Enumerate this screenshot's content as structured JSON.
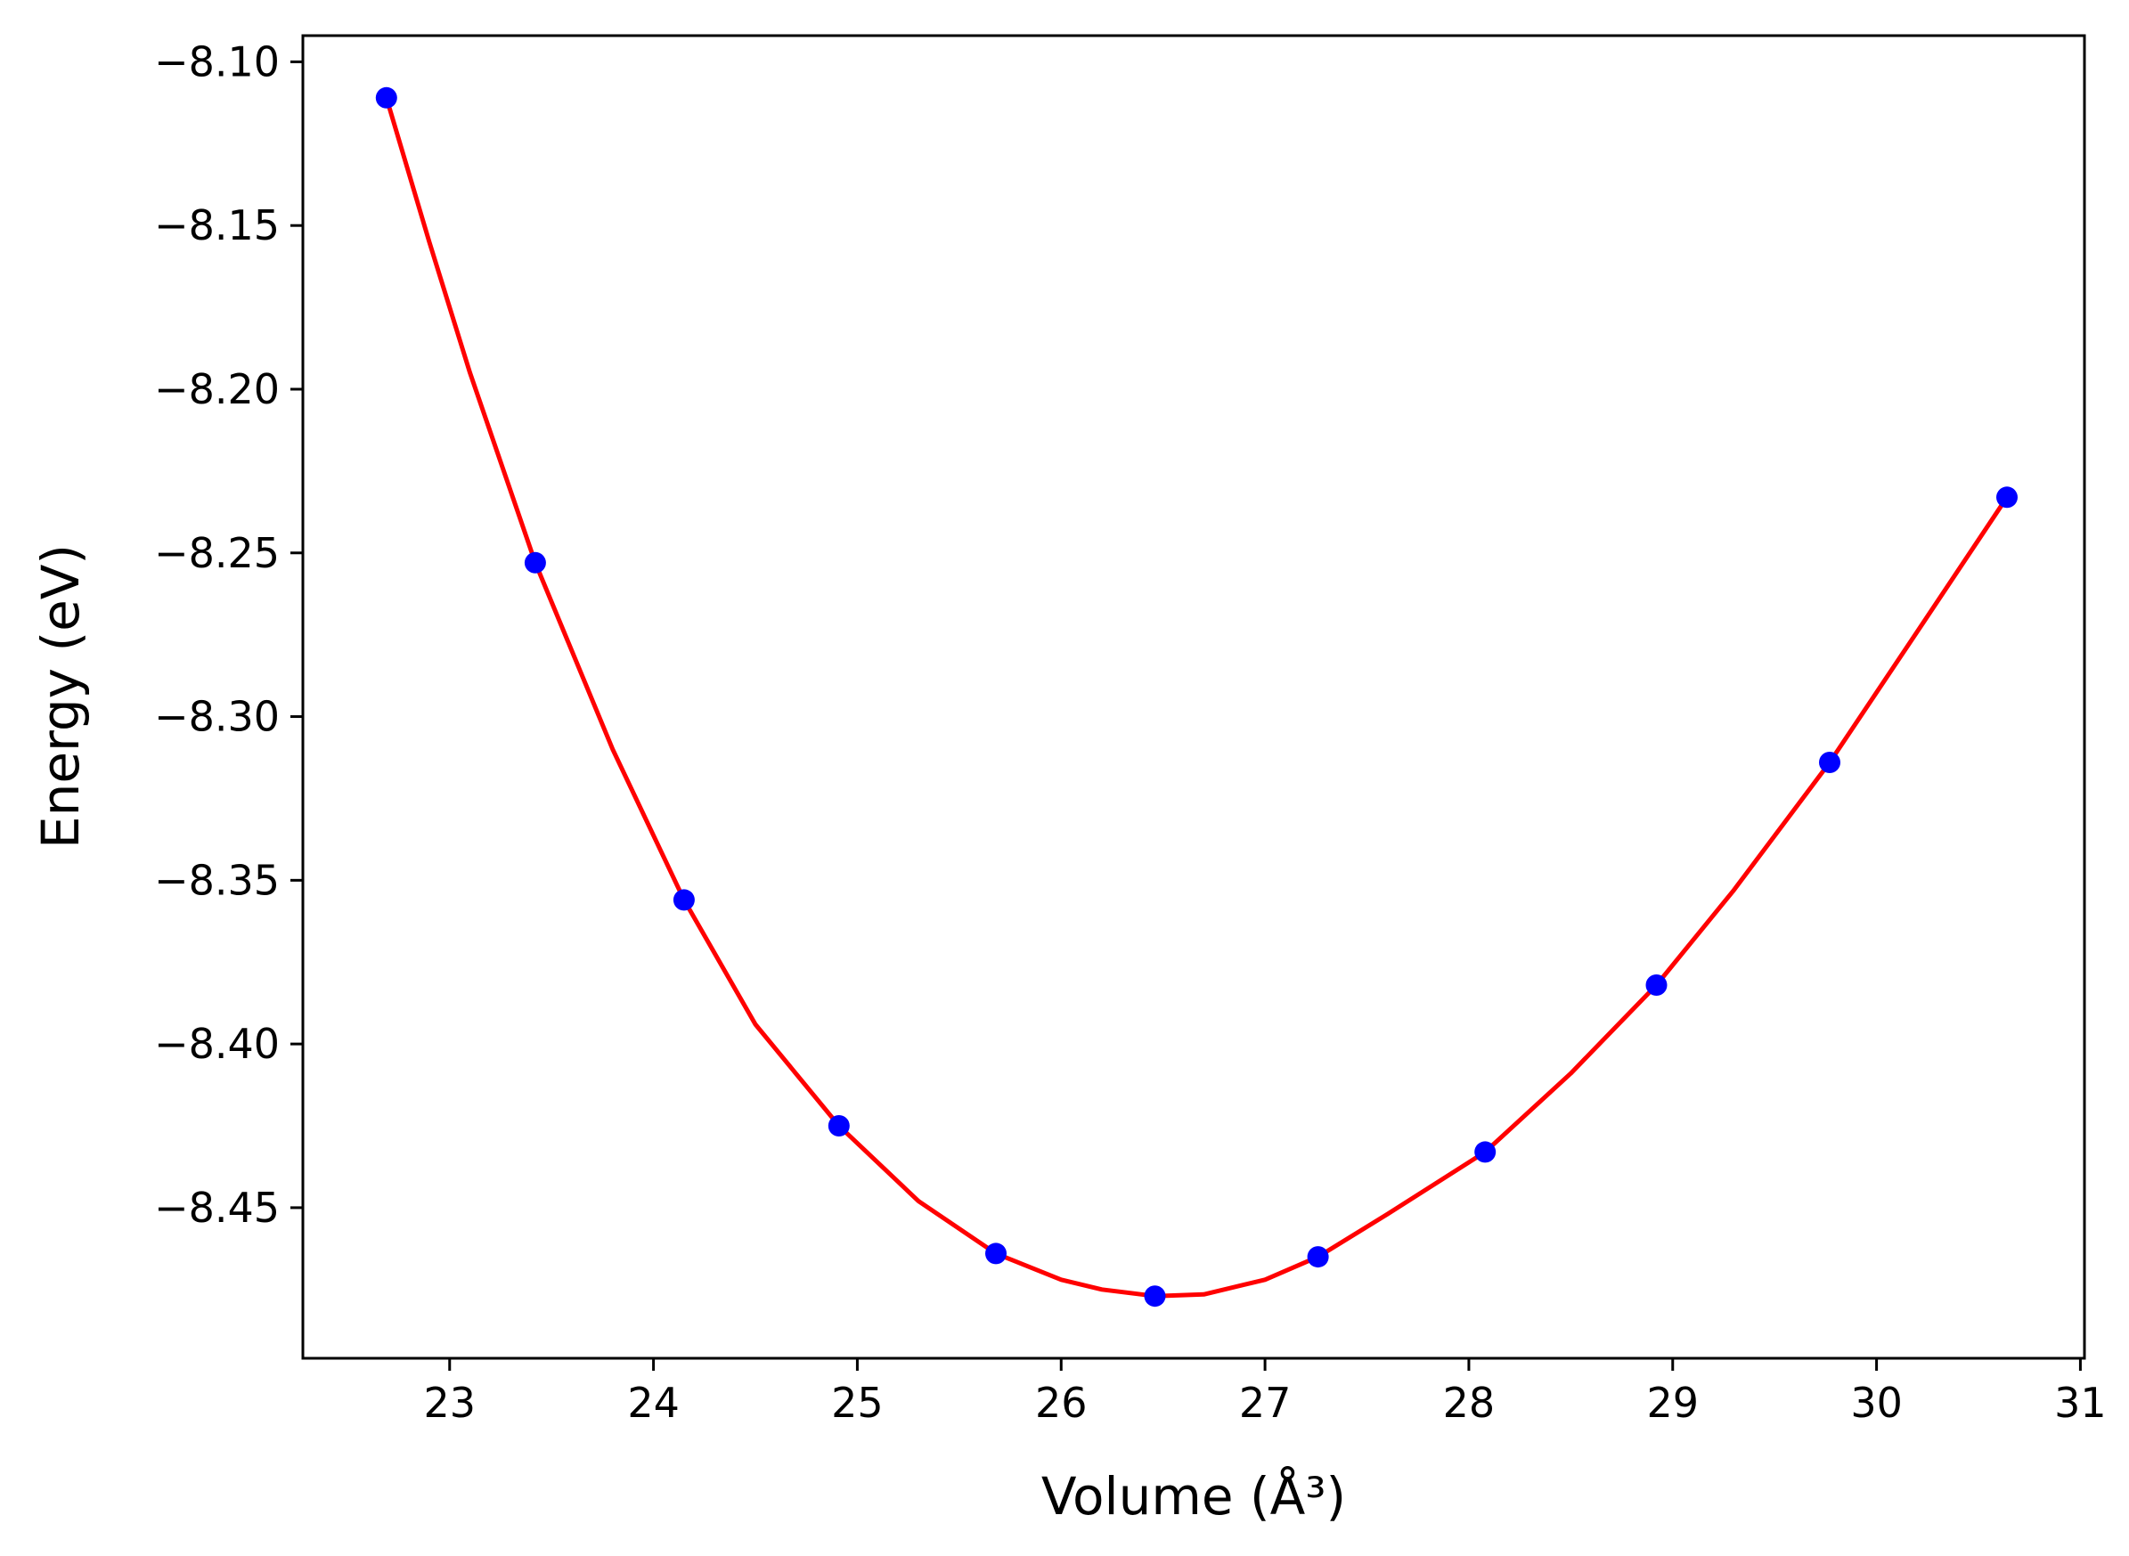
{
  "chart_data": {
    "type": "scatter",
    "xlabel": "Volume (Å³)",
    "ylabel": "Energy (eV)",
    "xlim": [
      22.28,
      31.02
    ],
    "ylim": [
      -8.496,
      -8.092
    ],
    "xticks": [
      23,
      24,
      25,
      26,
      27,
      28,
      29,
      30,
      31
    ],
    "yticks": [
      -8.1,
      -8.15,
      -8.2,
      -8.25,
      -8.3,
      -8.35,
      -8.4,
      -8.45
    ],
    "xtick_labels": [
      "23",
      "24",
      "25",
      "26",
      "27",
      "28",
      "29",
      "30",
      "31"
    ],
    "ytick_labels": [
      "−8.10",
      "−8.15",
      "−8.20",
      "−8.25",
      "−8.30",
      "−8.35",
      "−8.40",
      "−8.45"
    ],
    "grid": false,
    "series": [
      {
        "marker": "circle",
        "color": "#0000ff",
        "x": [
          22.69,
          23.42,
          24.15,
          24.91,
          25.68,
          26.46,
          27.26,
          28.08,
          28.92,
          29.77,
          30.64
        ],
        "y": [
          -8.111,
          -8.253,
          -8.356,
          -8.425,
          -8.464,
          -8.477,
          -8.465,
          -8.433,
          -8.382,
          -8.314,
          -8.233
        ]
      },
      {
        "line": "fit",
        "color": "#ff0000",
        "x": [
          22.69,
          22.9,
          23.1,
          23.42,
          23.8,
          24.15,
          24.5,
          24.91,
          25.3,
          25.68,
          26.0,
          26.2,
          26.46,
          26.7,
          27.0,
          27.26,
          27.6,
          28.08,
          28.5,
          28.92,
          29.3,
          29.77,
          30.2,
          30.64
        ],
        "y": [
          -8.111,
          -8.155,
          -8.195,
          -8.253,
          -8.31,
          -8.356,
          -8.394,
          -8.425,
          -8.448,
          -8.464,
          -8.472,
          -8.475,
          -8.477,
          -8.4765,
          -8.472,
          -8.465,
          -8.452,
          -8.433,
          -8.409,
          -8.382,
          -8.353,
          -8.314,
          -8.274,
          -8.233
        ]
      }
    ]
  }
}
